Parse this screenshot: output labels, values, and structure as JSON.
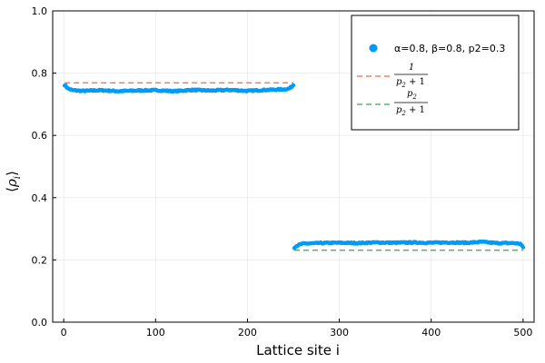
{
  "chart_data": {
    "type": "scatter",
    "xlabel": "Lattice site i",
    "ylabel": "⟨ρᵢ⟩",
    "xlim": [
      -12,
      512
    ],
    "ylim": [
      0,
      1
    ],
    "xticks": [
      0,
      100,
      200,
      300,
      400,
      500
    ],
    "yticks": [
      0.0,
      0.2,
      0.4,
      0.6,
      0.8,
      1.0
    ],
    "ytick_labels": [
      "0.0",
      "0.2",
      "0.4",
      "0.6",
      "0.8",
      "1.0"
    ],
    "grid": true,
    "legend_position": "top-right",
    "series": [
      {
        "name": "α=0.8, β=0.8, p2=0.3",
        "kind": "scatter",
        "color": "#009AF9",
        "segments": [
          {
            "x_range": [
              1,
              250
            ],
            "profile": [
              [
                1,
                0.762
              ],
              [
                5,
                0.75
              ],
              [
                10,
                0.745
              ],
              [
                20,
                0.743
              ],
              [
                40,
                0.745
              ],
              [
                60,
                0.742
              ],
              [
                80,
                0.744
              ],
              [
                100,
                0.745
              ],
              [
                120,
                0.742
              ],
              [
                140,
                0.746
              ],
              [
                160,
                0.744
              ],
              [
                180,
                0.746
              ],
              [
                200,
                0.743
              ],
              [
                220,
                0.746
              ],
              [
                240,
                0.748
              ],
              [
                245,
                0.75
              ],
              [
                248,
                0.756
              ],
              [
                250,
                0.762
              ]
            ]
          },
          {
            "x_range": [
              251,
              500
            ],
            "profile": [
              [
                251,
                0.24
              ],
              [
                254,
                0.246
              ],
              [
                260,
                0.252
              ],
              [
                280,
                0.254
              ],
              [
                300,
                0.255
              ],
              [
                320,
                0.254
              ],
              [
                340,
                0.256
              ],
              [
                360,
                0.255
              ],
              [
                380,
                0.256
              ],
              [
                400,
                0.255
              ],
              [
                420,
                0.256
              ],
              [
                440,
                0.255
              ],
              [
                455,
                0.258
              ],
              [
                470,
                0.254
              ],
              [
                490,
                0.254
              ],
              [
                497,
                0.252
              ],
              [
                500,
                0.24
              ]
            ]
          }
        ]
      },
      {
        "name": "1/(p2+1)",
        "kind": "hline",
        "color": "#E26F46",
        "y": 0.769,
        "x_range": [
          1,
          250
        ],
        "dashed": true
      },
      {
        "name": "p2/(p2+1)",
        "kind": "hline",
        "color": "#3DA44D",
        "y": 0.231,
        "x_range": [
          251,
          500
        ],
        "dashed": true
      }
    ]
  },
  "legend": {
    "scatter_label": "α=0.8, β=0.8, p2=0.3",
    "frac1_num": "1",
    "frac1_den_main": "p",
    "frac1_den_sub": "2",
    "frac1_den_rest": " + 1",
    "frac2_num_main": "p",
    "frac2_num_sub": "2",
    "frac2_den_main": "p",
    "frac2_den_sub": "2",
    "frac2_den_rest": " + 1"
  },
  "ylabel_parts": {
    "left": "⟨",
    "main": "ρ",
    "sub": "i",
    "right": "⟩"
  }
}
